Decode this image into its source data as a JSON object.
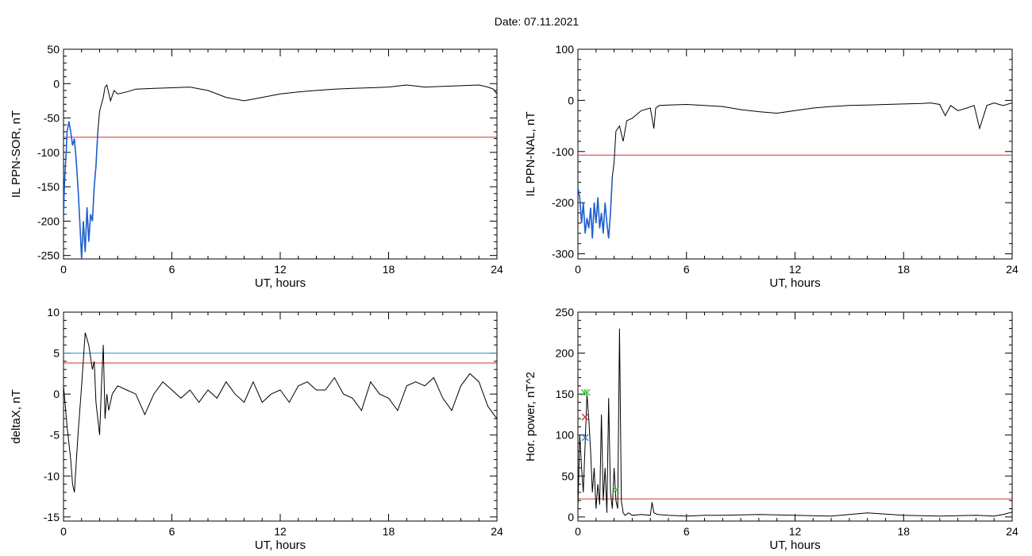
{
  "header": {
    "title": "Date:  07.11.2021"
  },
  "colors": {
    "trace": "#000000",
    "highlight": "#1f5fd0",
    "threshold": "#d03030",
    "secondary_threshold": "#2f8fd0",
    "marker_green": "#40c040",
    "marker_red": "#d03030",
    "marker_blue": "#2f6fd0"
  },
  "chart_data": [
    {
      "type": "line",
      "ylabel": "IL PPN-SOR, nT",
      "xlabel": "UT, hours",
      "xlim": [
        0,
        24
      ],
      "ylim": [
        -255,
        50
      ],
      "xticks": [
        0,
        6,
        12,
        18,
        24
      ],
      "yticks": [
        -250,
        -200,
        -150,
        -100,
        -50,
        0,
        50
      ],
      "threshold": -78,
      "highlight_range": [
        0,
        1.95
      ],
      "series": [
        {
          "x": [
            0,
            0.05,
            0.1,
            0.15,
            0.2,
            0.3,
            0.4,
            0.5,
            0.6,
            0.7,
            0.8,
            0.9,
            1.0,
            1.1,
            1.2,
            1.3,
            1.4,
            1.5,
            1.6,
            1.7,
            1.8,
            1.9,
            2.0,
            2.1,
            2.2,
            2.3,
            2.4,
            2.6,
            2.8,
            3.0,
            3.5,
            4.0,
            5.0,
            6.0,
            7.0,
            8.0,
            9.0,
            10.0,
            11.0,
            12.0,
            13.0,
            14.0,
            15.0,
            16.0,
            17.0,
            18.0,
            19.0,
            20.0,
            21.0,
            22.0,
            23.0,
            23.5,
            23.8,
            24.0
          ],
          "y": [
            -190,
            -150,
            -120,
            -100,
            -70,
            -55,
            -70,
            -90,
            -80,
            -110,
            -150,
            -200,
            -255,
            -200,
            -245,
            -180,
            -230,
            -190,
            -200,
            -150,
            -120,
            -70,
            -40,
            -30,
            -20,
            -5,
            -2,
            -25,
            -10,
            -15,
            -12,
            -8,
            -7,
            -6,
            -5,
            -10,
            -20,
            -25,
            -20,
            -15,
            -12,
            -10,
            -8,
            -7,
            -6,
            -5,
            -2,
            -5,
            -4,
            -3,
            -2,
            -5,
            -8,
            -15
          ]
        }
      ]
    },
    {
      "type": "line",
      "ylabel": "IL PPN-NAL, nT",
      "xlabel": "UT, hours",
      "xlim": [
        0,
        24
      ],
      "ylim": [
        -310,
        100
      ],
      "xticks": [
        0,
        6,
        12,
        18,
        24
      ],
      "yticks": [
        -300,
        -200,
        -100,
        0,
        100
      ],
      "threshold": -107,
      "highlight_range": [
        0,
        1.95
      ],
      "series": [
        {
          "x": [
            0,
            0.1,
            0.2,
            0.3,
            0.4,
            0.5,
            0.6,
            0.7,
            0.8,
            0.9,
            1.0,
            1.1,
            1.2,
            1.3,
            1.4,
            1.5,
            1.6,
            1.7,
            1.8,
            1.9,
            2.0,
            2.1,
            2.3,
            2.5,
            2.7,
            3.0,
            3.5,
            4.0,
            4.2,
            4.3,
            4.5,
            5.0,
            6.0,
            7.0,
            8.0,
            9.0,
            10.0,
            11.0,
            12.0,
            13.0,
            14.0,
            15.0,
            16.0,
            17.0,
            18.0,
            19.0,
            19.5,
            20.0,
            20.3,
            20.6,
            21.0,
            21.5,
            21.9,
            22.2,
            22.6,
            23.0,
            23.5,
            24.0
          ],
          "y": [
            -170,
            -190,
            -240,
            -200,
            -260,
            -230,
            -250,
            -210,
            -270,
            -200,
            -240,
            -190,
            -250,
            -220,
            -260,
            -200,
            -240,
            -270,
            -220,
            -150,
            -120,
            -60,
            -50,
            -80,
            -40,
            -35,
            -20,
            -15,
            -55,
            -15,
            -10,
            -9,
            -8,
            -10,
            -12,
            -18,
            -22,
            -25,
            -20,
            -15,
            -12,
            -10,
            -9,
            -8,
            -7,
            -6,
            -5,
            -8,
            -30,
            -10,
            -20,
            -15,
            -10,
            -55,
            -10,
            -5,
            -10,
            -5
          ]
        }
      ]
    },
    {
      "type": "line",
      "ylabel": "deltaX, nT",
      "xlabel": "UT, hours",
      "xlim": [
        0,
        24
      ],
      "ylim": [
        -15.5,
        10
      ],
      "xticks": [
        0,
        6,
        12,
        18,
        24
      ],
      "yticks": [
        -15,
        -10,
        -5,
        0,
        5,
        10
      ],
      "threshold": 3.8,
      "secondary_threshold": 5.0,
      "series": [
        {
          "x": [
            0,
            0.2,
            0.4,
            0.5,
            0.6,
            0.8,
            1.0,
            1.2,
            1.4,
            1.6,
            1.7,
            1.8,
            2.0,
            2.1,
            2.2,
            2.3,
            2.4,
            2.5,
            2.7,
            3.0,
            3.5,
            4.0,
            4.5,
            5.0,
            5.5,
            6.0,
            6.5,
            7.0,
            7.5,
            8.0,
            8.5,
            9.0,
            9.5,
            10.0,
            10.5,
            11.0,
            11.5,
            12.0,
            12.5,
            13.0,
            13.5,
            14.0,
            14.5,
            15.0,
            15.5,
            16.0,
            16.5,
            17.0,
            17.5,
            18.0,
            18.5,
            19.0,
            19.5,
            20.0,
            20.5,
            21.0,
            21.5,
            22.0,
            22.5,
            23.0,
            23.5,
            24.0
          ],
          "y": [
            1,
            -4,
            -8,
            -11,
            -12,
            -5,
            1,
            7.5,
            6,
            3,
            4,
            -1,
            -5,
            1,
            6,
            -3,
            0,
            -2,
            0,
            1,
            0.5,
            0,
            -2.5,
            0,
            1.5,
            0.5,
            -0.5,
            0.5,
            -1,
            0.5,
            -0.5,
            1.5,
            0,
            -1,
            1.5,
            -1,
            0,
            0.5,
            -1,
            1,
            1.5,
            0.5,
            0.5,
            2,
            0,
            -0.5,
            -2,
            1.5,
            0,
            -0.5,
            -2,
            1,
            1.5,
            1,
            2,
            -0.5,
            -2,
            1,
            2.5,
            1.5,
            -1.5,
            -3
          ]
        }
      ]
    },
    {
      "type": "line",
      "ylabel": "Hor. power, nT^2",
      "xlabel": "UT, hours",
      "xlim": [
        0,
        24
      ],
      "ylim": [
        -5,
        250
      ],
      "xticks": [
        0,
        6,
        12,
        18,
        24
      ],
      "yticks": [
        0,
        50,
        100,
        150,
        200,
        250
      ],
      "threshold": 22,
      "markers": [
        {
          "x": 0.35,
          "y": 152,
          "color": "green"
        },
        {
          "x": 0.5,
          "y": 152,
          "color": "green"
        },
        {
          "x": 0.4,
          "y": 122,
          "color": "red"
        },
        {
          "x": 0.4,
          "y": 97,
          "color": "blue"
        },
        {
          "x": 2.1,
          "y": 33,
          "color": "green"
        }
      ],
      "series": [
        {
          "x": [
            0,
            0.1,
            0.2,
            0.3,
            0.4,
            0.5,
            0.6,
            0.7,
            0.8,
            0.9,
            1.0,
            1.1,
            1.2,
            1.3,
            1.4,
            1.5,
            1.6,
            1.7,
            1.8,
            1.9,
            2.0,
            2.1,
            2.2,
            2.3,
            2.4,
            2.5,
            2.6,
            2.8,
            3.0,
            3.5,
            4.0,
            4.1,
            4.2,
            4.4,
            5.0,
            6.0,
            7.0,
            8.0,
            10.0,
            12.0,
            14.0,
            15.0,
            16.0,
            18.0,
            20.0,
            22.0,
            23.0,
            23.5,
            24.0
          ],
          "y": [
            10,
            100,
            60,
            30,
            90,
            150,
            120,
            80,
            30,
            60,
            10,
            40,
            15,
            125,
            20,
            60,
            5,
            145,
            30,
            10,
            60,
            20,
            10,
            230,
            20,
            5,
            2,
            5,
            2,
            3,
            2,
            18,
            5,
            3,
            2,
            1,
            2,
            2,
            3,
            2,
            1,
            3,
            5,
            2,
            1,
            2,
            1,
            3,
            6
          ]
        }
      ]
    }
  ]
}
